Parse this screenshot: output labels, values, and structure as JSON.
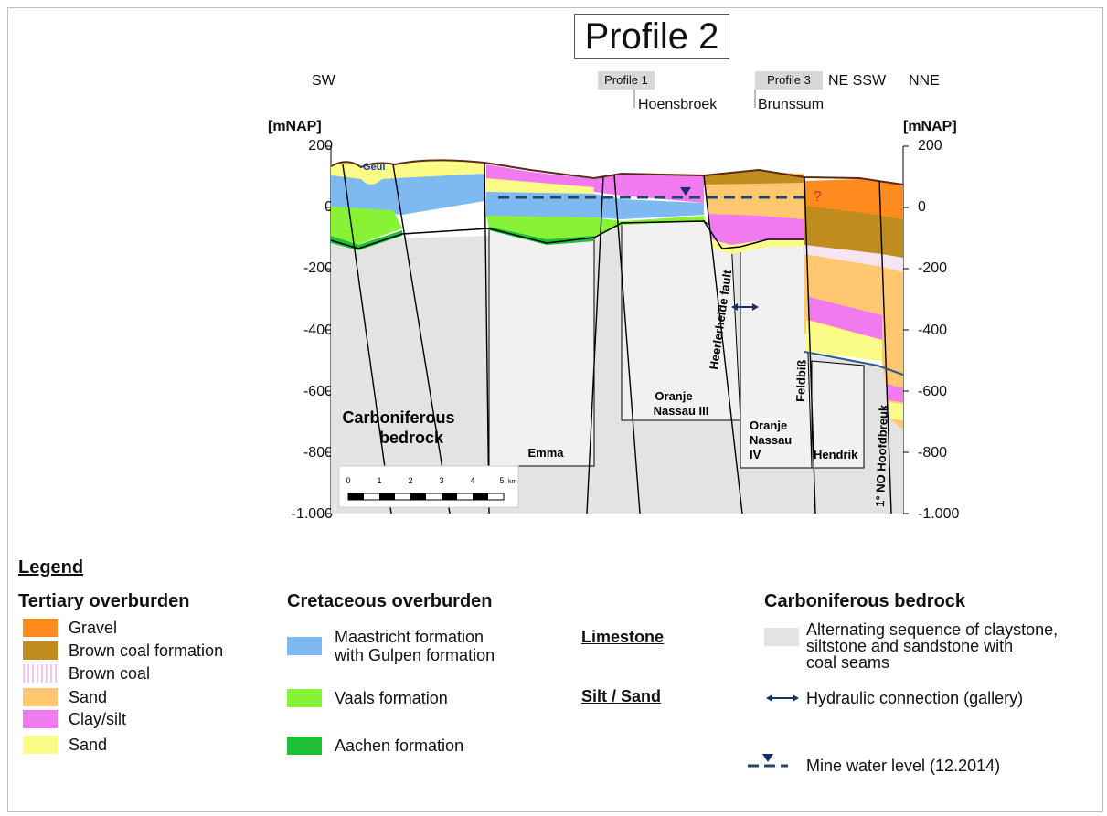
{
  "title": "Profile 2",
  "header": {
    "sw": "SW",
    "ne_ssw": "NE SSW",
    "nne": "NNE",
    "profile1_tag": "Profile 1",
    "profile3_tag": "Profile 3",
    "hoensbroek": "Hoensbroek",
    "brunssum": "Brunssum"
  },
  "axis": {
    "unit_left": "[mNAP]",
    "unit_right": "[mNAP]",
    "ticks": [
      "200",
      "0",
      "-200",
      "-400",
      "-600",
      "-800",
      "-1.000"
    ]
  },
  "section_labels": {
    "geul": "Geul",
    "carboniferous_1": "Carboniferous",
    "carboniferous_2": "bedrock",
    "emma": "Emma",
    "oranje3_1": "Oranje",
    "oranje3_2": "Nassau III",
    "oranje4_1": "Oranje",
    "oranje4_2": "Nassau",
    "oranje4_3": "IV",
    "hendrik": "Hendrik",
    "heerlerheide": "Heerlerheide fault",
    "feldbiss": "Feldbiß",
    "hoofdbreuk": "1° NO Hoofdbreuk",
    "question": "?"
  },
  "scale_bar": {
    "labels": [
      "0",
      "1",
      "2",
      "3",
      "4",
      "5"
    ],
    "unit": "km"
  },
  "legend": {
    "title": "Legend",
    "tertiary": {
      "heading": "Tertiary overburden",
      "items": [
        {
          "label": "Gravel",
          "color": "#ff8a1e"
        },
        {
          "label": "Brown coal formation",
          "color": "#c08c1e"
        },
        {
          "label": "Brown coal",
          "color": "#f7e4f2"
        },
        {
          "label": "Sand",
          "color": "#ffc870"
        },
        {
          "label": "Clay/silt",
          "color": "#f27af0"
        },
        {
          "label": "Sand",
          "color": "#fbfb88"
        }
      ]
    },
    "cretaceous": {
      "heading": "Cretaceous overburden",
      "maastricht_1": "Maastricht formation",
      "maastricht_2": "with Gulpen formation",
      "vaals": "Vaals formation",
      "aachen": "Aachen formation",
      "colors": {
        "maastricht": "#7fb9f2",
        "vaals": "#88f236",
        "aachen": "#1fbe37"
      }
    },
    "limestone": "Limestone",
    "silt_sand": "Silt / Sand",
    "carboniferous": {
      "heading": "Carboniferous bedrock",
      "alt_1": "Alternating sequence of claystone,",
      "alt_2": "siltstone and sandstone with",
      "alt_3": "coal seams",
      "hydraulic": "Hydraulic connection (gallery)",
      "mine_water": "Mine water level (12.2014)",
      "color": "#e3e3e3"
    }
  }
}
